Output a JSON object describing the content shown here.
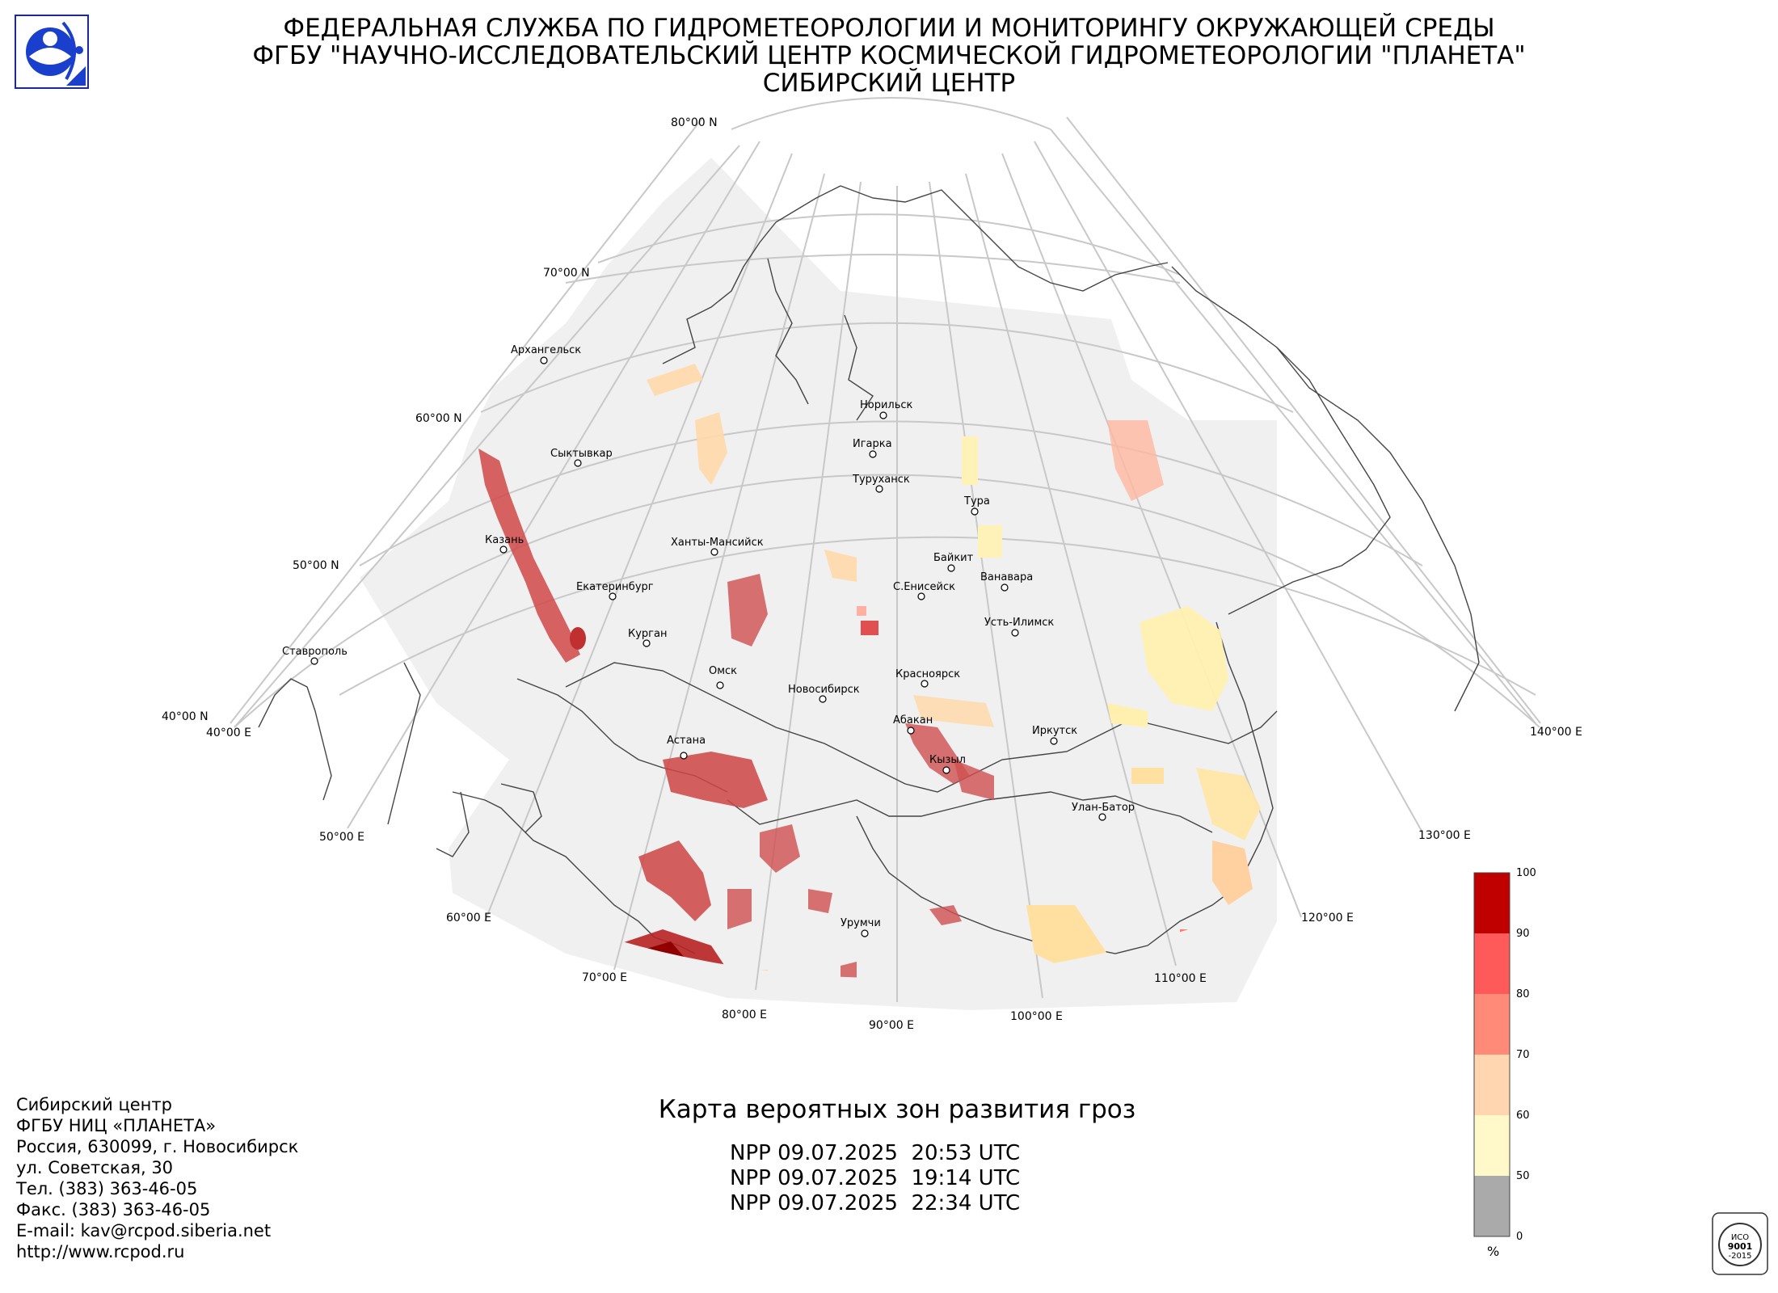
{
  "header": {
    "line1": "ФЕДЕРАЛЬНАЯ СЛУЖБА ПО ГИДРОМЕТЕОРОЛОГИИ И МОНИТОРИНГУ ОКРУЖАЮЩЕЙ СРЕДЫ",
    "line2": "ФГБУ \"НАУЧНО-ИССЛЕДОВАТЕЛЬСКИЙ ЦЕНТР КОСМИЧЕСКОЙ ГИДРОМЕТЕОРОЛОГИИ \"ПЛАНЕТА\"",
    "line3": "СИБИРСКИЙ ЦЕНТР"
  },
  "map": {
    "latitude_labels": [
      "80°00 N",
      "70°00 N",
      "60°00 N",
      "50°00 N",
      "40°00 N"
    ],
    "longitude_labels": [
      "40°00 E",
      "50°00 E",
      "60°00 E",
      "70°00 E",
      "80°00 E",
      "90°00 E",
      "100°00 E",
      "110°00 E",
      "120°00 E",
      "130°00 E",
      "140°00 E"
    ],
    "cities": [
      {
        "name": "Архангельск"
      },
      {
        "name": "Сыктывкар"
      },
      {
        "name": "Казань"
      },
      {
        "name": "Екатеринбург"
      },
      {
        "name": "Курган"
      },
      {
        "name": "Ставрополь"
      },
      {
        "name": "Ханты-Мансийск"
      },
      {
        "name": "Омск"
      },
      {
        "name": "Астана"
      },
      {
        "name": "Новосибирск"
      },
      {
        "name": "Норильск"
      },
      {
        "name": "Игарка"
      },
      {
        "name": "Туруханск"
      },
      {
        "name": "Тура"
      },
      {
        "name": "Байкит"
      },
      {
        "name": "С.Енисейск"
      },
      {
        "name": "Ванавара"
      },
      {
        "name": "Усть-Илимск"
      },
      {
        "name": "Красноярск"
      },
      {
        "name": "Абакан"
      },
      {
        "name": "Иркутск"
      },
      {
        "name": "Кызыл"
      },
      {
        "name": "Улан-Батор"
      },
      {
        "name": "Урумчи"
      }
    ]
  },
  "map_title": "Карта вероятных зон развития гроз",
  "passes": [
    "NPP 09.07.2025  20:53 UTC",
    "NPP 09.07.2025  19:14 UTC",
    "NPP 09.07.2025  22:34 UTC"
  ],
  "address": [
    "Сибирский центр",
    "ФГБУ НИЦ «ПЛАНЕТА»",
    "Россия, 630099, г. Новосибирск",
    "ул. Советская, 30",
    "Тел. (383) 363-46-05",
    "Факс. (383) 363-46-05",
    "E-mail: kav@rcpod.siberia.net",
    "http://www.rcpod.ru"
  ],
  "legend": {
    "unit": "%",
    "ticks": [
      "100",
      "90",
      "80",
      "70",
      "60",
      "50",
      "0"
    ],
    "colors": [
      "#c00000",
      "#ff5a5a",
      "#ff8a78",
      "#ffd6b0",
      "#fff8c8",
      "#aaaaaa"
    ]
  },
  "iso_badge": {
    "text1": "ИСО",
    "text2": "9001",
    "text3": "-2015"
  }
}
